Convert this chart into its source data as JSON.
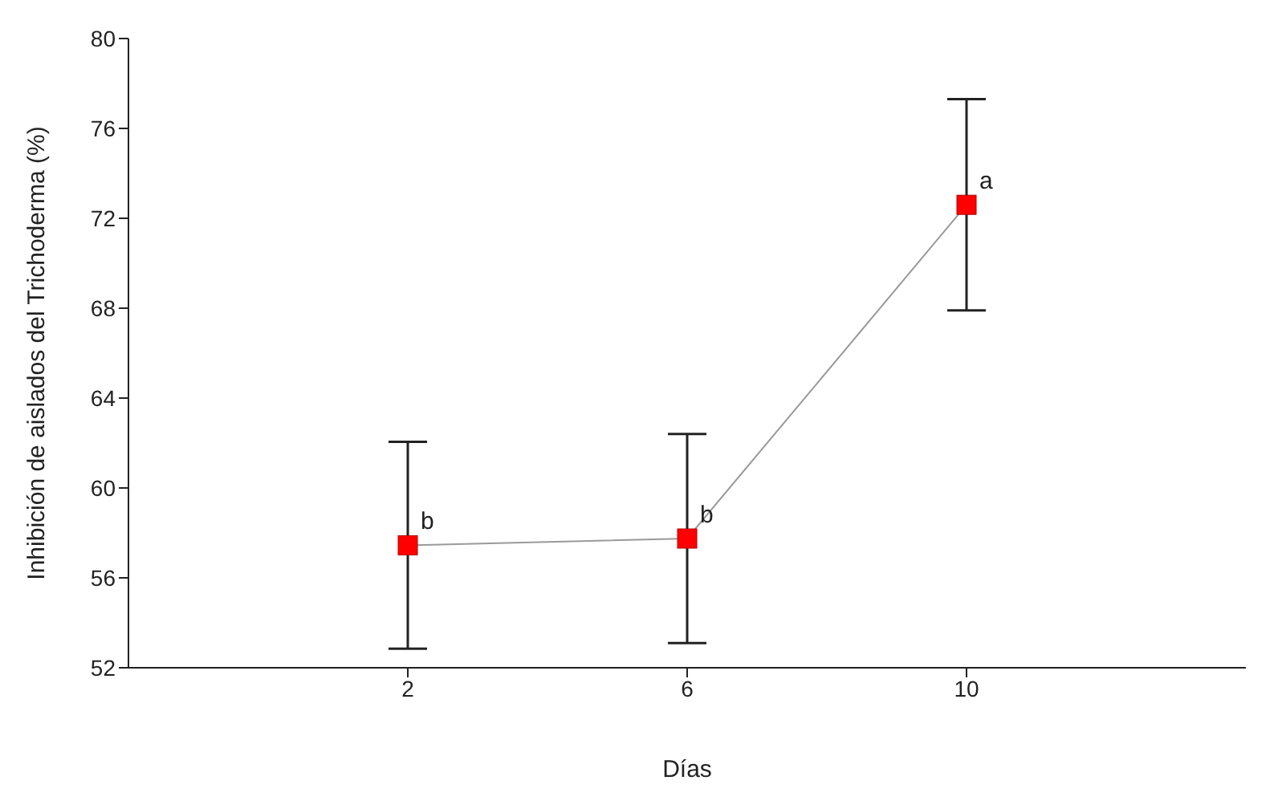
{
  "chart_data": {
    "type": "line",
    "xlabel": "Días",
    "ylabel": "Inhibición de aislados del Trichoderma (%)",
    "x": [
      2,
      6,
      10
    ],
    "series": [
      {
        "color": "#ff0000",
        "values": [
          57.45,
          57.75,
          72.6
        ],
        "errors": [
          4.6,
          4.65,
          4.7
        ]
      }
    ],
    "xlim": [
      -2,
      14
    ],
    "xticks": [
      2,
      6,
      10
    ],
    "ylim": [
      52,
      80
    ],
    "yticks": [
      52,
      56,
      60,
      64,
      68,
      72,
      76,
      80
    ],
    "marker": "square",
    "line_style": "solid",
    "grid": false,
    "legend": false,
    "annotations": [
      {
        "text": "b",
        "x": 2,
        "y": 57.45
      },
      {
        "text": "b",
        "x": 6,
        "y": 57.75
      },
      {
        "text": "a",
        "x": 10,
        "y": 72.6
      }
    ]
  }
}
